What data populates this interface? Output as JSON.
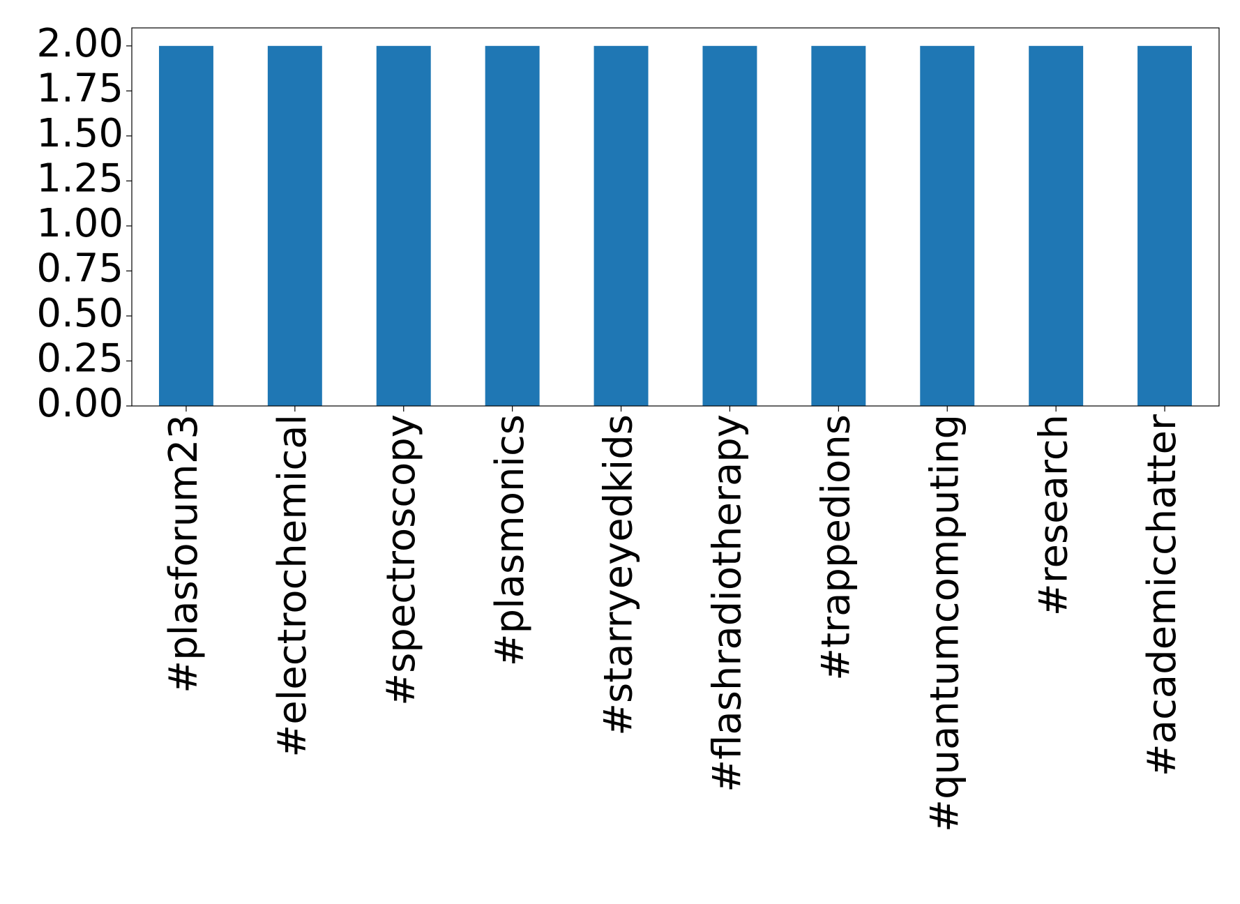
{
  "chart_data": {
    "type": "bar",
    "categories": [
      "#plasforum23",
      "#electrochemical",
      "#spectroscopy",
      "#plasmonics",
      "#starryeyedkids",
      "#flashradiotherapy",
      "#trappedions",
      "#quantumcomputing",
      "#research",
      "#academicchatter"
    ],
    "values": [
      2,
      2,
      2,
      2,
      2,
      2,
      2,
      2,
      2,
      2
    ],
    "color": "#1f77b4",
    "ylim": [
      0,
      2.1
    ],
    "yticks": [
      {
        "value": 0,
        "label": "0.00"
      },
      {
        "value": 0.25,
        "label": "0.25"
      },
      {
        "value": 0.5,
        "label": "0.50"
      },
      {
        "value": 0.75,
        "label": "0.75"
      },
      {
        "value": 1,
        "label": "1.00"
      },
      {
        "value": 1.25,
        "label": "1.25"
      },
      {
        "value": 1.5,
        "label": "1.50"
      },
      {
        "value": 1.75,
        "label": "1.75"
      },
      {
        "value": 2,
        "label": "2.00"
      }
    ],
    "grid": false
  }
}
